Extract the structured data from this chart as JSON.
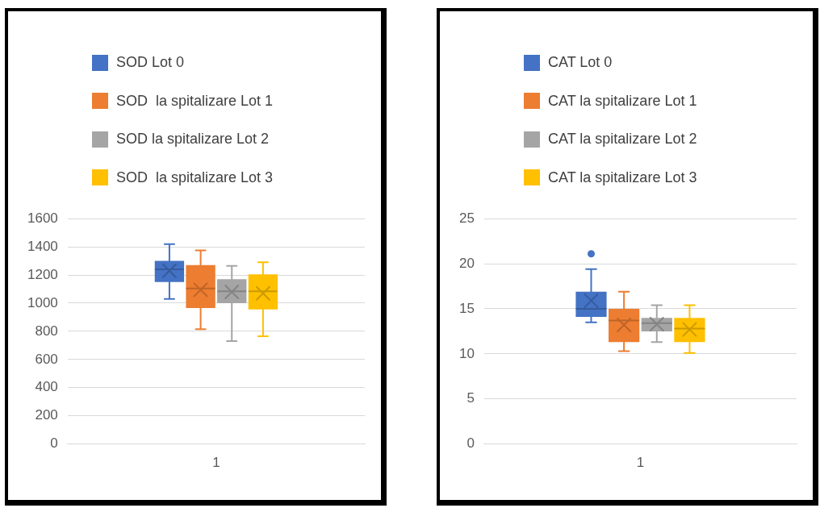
{
  "chart_data": [
    {
      "type": "box",
      "categories": [
        "1"
      ],
      "ylim": [
        0,
        1600
      ],
      "yticks": [
        0,
        200,
        400,
        600,
        800,
        1000,
        1200,
        1400,
        1600
      ],
      "grid": "y",
      "legend": "top left",
      "series": [
        {
          "name": "SOD Lot 0",
          "color": "#4472c4",
          "boxes": [
            {
              "low": 1030,
              "q1": 1150,
              "median": 1240,
              "q3": 1300,
              "high": 1420,
              "mean": 1230
            }
          ]
        },
        {
          "name": "SOD  la spitalizare Lot 1",
          "color": "#ed7d31",
          "boxes": [
            {
              "low": 815,
              "q1": 965,
              "median": 1105,
              "q3": 1270,
              "high": 1375,
              "mean": 1095
            }
          ]
        },
        {
          "name": "SOD la spitalizare Lot 2",
          "color": "#a5a5a5",
          "boxes": [
            {
              "low": 730,
              "q1": 1000,
              "median": 1085,
              "q3": 1170,
              "high": 1265,
              "mean": 1080
            }
          ]
        },
        {
          "name": "SOD  la spitalizare Lot 3",
          "color": "#ffc000",
          "boxes": [
            {
              "low": 765,
              "q1": 955,
              "median": 1085,
              "q3": 1205,
              "high": 1290,
              "mean": 1070
            }
          ]
        }
      ]
    },
    {
      "type": "box",
      "categories": [
        "1"
      ],
      "ylim": [
        0,
        25
      ],
      "yticks": [
        0,
        5,
        10,
        15,
        20,
        25
      ],
      "grid": "y",
      "legend": "top left",
      "series": [
        {
          "name": "CAT Lot 0",
          "color": "#4472c4",
          "boxes": [
            {
              "low": 13.5,
              "q1": 14.1,
              "median": 15,
              "q3": 16.9,
              "high": 19.4,
              "mean": 15.9,
              "outliers": [
                21.1
              ]
            }
          ]
        },
        {
          "name": "CAT la spitalizare Lot 1",
          "color": "#ed7d31",
          "boxes": [
            {
              "low": 10.3,
              "q1": 11.3,
              "median": 13.7,
              "q3": 15,
              "high": 16.9,
              "mean": 13.2
            }
          ]
        },
        {
          "name": "CAT la spitalizare Lot 2",
          "color": "#a5a5a5",
          "boxes": [
            {
              "low": 11.3,
              "q1": 12.5,
              "median": 13.4,
              "q3": 14,
              "high": 15.4,
              "mean": 13.3
            }
          ]
        },
        {
          "name": "CAT la spitalizare Lot 3",
          "color": "#ffc000",
          "boxes": [
            {
              "low": 10.1,
              "q1": 11.3,
              "median": 12.8,
              "q3": 14,
              "high": 15.4,
              "mean": 12.7
            }
          ]
        }
      ]
    }
  ]
}
